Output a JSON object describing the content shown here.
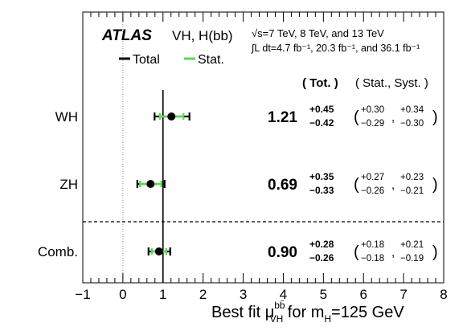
{
  "chart_data": {
    "type": "scatter",
    "title": "VH, H(bb)",
    "experiment": "ATLAS",
    "energy_line": "√s=7 TeV, 8 TeV, and 13 TeV",
    "lumi_line": "∫L dt=4.7 fb⁻¹, 20.3 fb⁻¹, and 36.1 fb⁻¹",
    "legend": {
      "total_label": "Total",
      "stat_label": "Stat.",
      "placement": "top-left"
    },
    "header": {
      "tot": "( Tot. )",
      "statsyst": "( Stat., Syst. )"
    },
    "xlabel": {
      "main": "Best fit μ",
      "sup": "bb̄",
      "sub": "VH",
      "tail1": " for m",
      "sub2": "H",
      "tail2": "=125 GeV"
    },
    "xlim": [
      -1,
      8
    ],
    "xticks": [
      -1,
      0,
      1,
      2,
      3,
      4,
      5,
      6,
      7,
      8
    ],
    "xtick_labels": [
      "−1",
      "0",
      "1",
      "2",
      "3",
      "4",
      "5",
      "6",
      "7",
      "8"
    ],
    "reference_lines": {
      "sm_value": 1,
      "zero_value": 0
    },
    "colors": {
      "total": "#000000",
      "stat": "#5cd65c"
    },
    "series": [
      {
        "category": "WH",
        "value": 1.21,
        "value_label": "1.21",
        "tot_up": 0.45,
        "tot_dn": 0.42,
        "tot_up_label": "+0.45",
        "tot_dn_label": "−0.42",
        "stat_up": 0.3,
        "stat_dn": 0.29,
        "syst_up": 0.34,
        "syst_dn": 0.3,
        "stat_up_label": "+0.30",
        "stat_dn_label": "−0.29",
        "syst_up_label": "+0.34",
        "syst_dn_label": "−0.30"
      },
      {
        "category": "ZH",
        "value": 0.69,
        "value_label": "0.69",
        "tot_up": 0.35,
        "tot_dn": 0.33,
        "tot_up_label": "+0.35",
        "tot_dn_label": "−0.33",
        "stat_up": 0.27,
        "stat_dn": 0.26,
        "syst_up": 0.23,
        "syst_dn": 0.21,
        "stat_up_label": "+0.27",
        "stat_dn_label": "−0.26",
        "syst_up_label": "+0.23",
        "syst_dn_label": "−0.21"
      },
      {
        "category": "Comb.",
        "value": 0.9,
        "value_label": "0.90",
        "tot_up": 0.28,
        "tot_dn": 0.26,
        "tot_up_label": "+0.28",
        "tot_dn_label": "−0.26",
        "stat_up": 0.18,
        "stat_dn": 0.18,
        "syst_up": 0.21,
        "syst_dn": 0.19,
        "stat_up_label": "+0.18",
        "stat_dn_label": "−0.18",
        "syst_up_label": "+0.21",
        "syst_dn_label": "−0.19"
      }
    ]
  }
}
